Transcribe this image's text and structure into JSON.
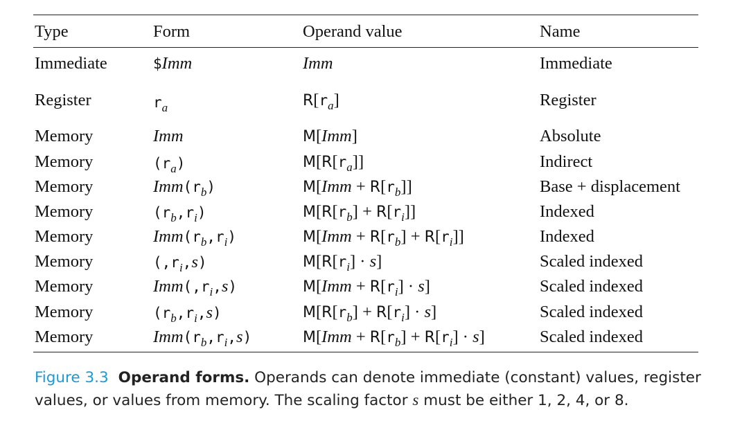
{
  "table": {
    "headers": {
      "type": "Type",
      "form": "Form",
      "operand_value": "Operand value",
      "name": "Name"
    },
    "rows": [
      {
        "type": "Immediate",
        "form": "$Imm",
        "operand_value": "Imm",
        "name": "Immediate"
      },
      {
        "type": "Register",
        "form": "r_a",
        "operand_value": "R[r_a]",
        "name": "Register"
      },
      {
        "type": "Memory",
        "form": "Imm",
        "operand_value": "M[Imm]",
        "name": "Absolute"
      },
      {
        "type": "Memory",
        "form": "(r_a)",
        "operand_value": "M[R[r_a]]",
        "name": "Indirect"
      },
      {
        "type": "Memory",
        "form": "Imm(r_b)",
        "operand_value": "M[Imm + R[r_b]]",
        "name": "Base + displacement"
      },
      {
        "type": "Memory",
        "form": "(r_b,r_i)",
        "operand_value": "M[R[r_b] + R[r_i]]",
        "name": "Indexed"
      },
      {
        "type": "Memory",
        "form": "Imm(r_b,r_i)",
        "operand_value": "M[Imm + R[r_b] + R[r_i]]",
        "name": "Indexed"
      },
      {
        "type": "Memory",
        "form": "(,r_i,s)",
        "operand_value": "M[R[r_i] · s]",
        "name": "Scaled indexed"
      },
      {
        "type": "Memory",
        "form": "Imm(,r_i,s)",
        "operand_value": "M[Imm + R[r_i] · s]",
        "name": "Scaled indexed"
      },
      {
        "type": "Memory",
        "form": "(r_b,r_i,s)",
        "operand_value": "M[R[r_b] + R[r_i] · s]",
        "name": "Scaled indexed"
      },
      {
        "type": "Memory",
        "form": "Imm(r_b,r_i,s)",
        "operand_value": "M[Imm + R[r_b] + R[r_i] · s]",
        "name": "Scaled indexed"
      }
    ]
  },
  "caption": {
    "label": "Figure 3.3",
    "title": "Operand forms.",
    "text_before_var": "Operands can denote immediate (constant) values, register values, or values from memory. The scaling factor",
    "var": "s",
    "text_after_var": "must be either 1, 2, 4, or 8."
  },
  "colors": {
    "figure_label": "#1a9ad6",
    "text": "#111111",
    "rules": "#222222"
  }
}
